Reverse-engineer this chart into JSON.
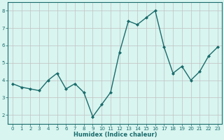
{
  "x": [
    0,
    1,
    2,
    3,
    4,
    5,
    6,
    7,
    8,
    9,
    10,
    11,
    12,
    13,
    14,
    15,
    16,
    17,
    18,
    19,
    20,
    21,
    22,
    23
  ],
  "y": [
    3.8,
    3.6,
    3.5,
    3.4,
    4.0,
    4.4,
    3.5,
    3.8,
    3.3,
    1.9,
    2.6,
    3.3,
    5.6,
    7.4,
    7.2,
    7.6,
    8.0,
    5.9,
    4.4,
    4.8,
    4.0,
    4.5,
    5.4,
    5.9
  ],
  "title": "",
  "xlabel": "Humidex (Indice chaleur)",
  "ylabel": "",
  "xlim": [
    -0.5,
    23.5
  ],
  "ylim": [
    1.5,
    8.5
  ],
  "yticks": [
    2,
    3,
    4,
    5,
    6,
    7,
    8
  ],
  "xticks": [
    0,
    1,
    2,
    3,
    4,
    5,
    6,
    7,
    8,
    9,
    10,
    11,
    12,
    13,
    14,
    15,
    16,
    17,
    18,
    19,
    20,
    21,
    22,
    23
  ],
  "line_color": "#1a6b6b",
  "marker": "D",
  "marker_size": 2,
  "bg_color": "#d8f5f0",
  "grid_color_major": "#c0c0c0",
  "grid_color_minor": "#e0e8e8",
  "axes_color": "#1a6b6b",
  "xlabel_color": "#1a6b6b",
  "tick_label_color": "#1a6b6b",
  "tick_fontsize": 5,
  "xlabel_fontsize": 6,
  "linewidth": 1.0
}
